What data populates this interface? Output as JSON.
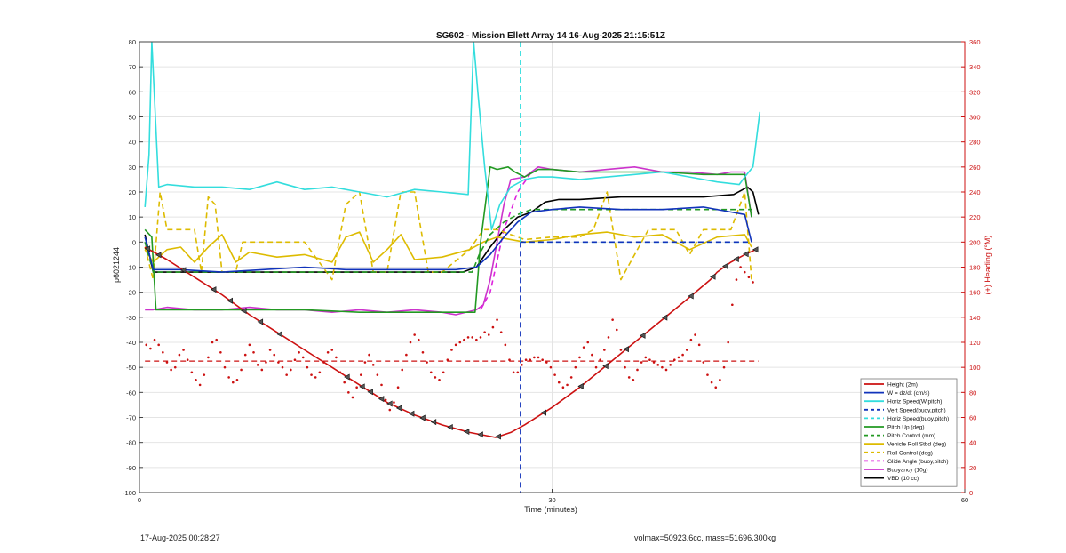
{
  "chart_data": {
    "type": "line",
    "title": "SG602 - Mission Ellett Array 14 16-Aug-2025 21:15:51Z",
    "xlabel": "Time (minutes)",
    "ylabel": "p6021244",
    "y2label": "(+) Heading (°M)",
    "xlim": [
      0,
      60
    ],
    "ylim": [
      -100,
      80
    ],
    "y2lim": [
      0,
      360
    ],
    "xticks": [
      0,
      30,
      60
    ],
    "yticks": [
      -100,
      -90,
      -80,
      -70,
      -60,
      -50,
      -40,
      -30,
      -20,
      -10,
      0,
      10,
      20,
      30,
      40,
      50,
      60,
      70,
      80
    ],
    "y2ticks": [
      0,
      20,
      40,
      60,
      80,
      100,
      120,
      140,
      160,
      180,
      200,
      220,
      240,
      260,
      280,
      300,
      320,
      340,
      360
    ],
    "grid": true,
    "legend_position": "bottom-right",
    "vertical_line_x": 27.7,
    "series": [
      {
        "name": "Height (2m)",
        "color": "#cc1111",
        "style": "solid",
        "x": [
          0.4,
          2,
          4,
          6,
          8,
          10,
          12,
          14,
          16,
          18,
          20,
          22,
          24,
          25.9,
          27,
          28,
          30,
          32,
          34,
          36,
          38,
          40,
          41.5,
          42,
          43,
          44,
          44.8
        ],
        "y": [
          -2,
          -7,
          -14,
          -21,
          -29,
          -36,
          -43,
          -50,
          -57,
          -64,
          -69,
          -73,
          -76,
          -78,
          -76,
          -73,
          -66,
          -58,
          -49,
          -40,
          -31,
          -22,
          -15,
          -12,
          -8,
          -5,
          -3
        ]
      },
      {
        "name": "W = dz/dt (cm/s)",
        "color": "#1133bb",
        "style": "solid",
        "x": [
          0.4,
          1,
          3,
          6,
          9,
          12,
          15,
          18,
          21,
          23,
          24.5,
          25.5,
          26.5,
          27.5,
          28.5,
          30,
          32,
          35,
          38,
          41,
          43,
          44,
          44.5
        ],
        "y": [
          2,
          -11,
          -11,
          -12,
          -11,
          -10,
          -11,
          -11,
          -11,
          -11,
          -10,
          -5,
          2,
          8,
          12,
          13,
          14,
          13,
          13,
          14,
          12,
          11,
          0
        ]
      },
      {
        "name": "Horiz Speed(W,pitch)",
        "color": "#33dddd",
        "style": "solid",
        "x": [
          0.4,
          0.7,
          0.9,
          1.4,
          2,
          4,
          6,
          8,
          10,
          12,
          14,
          16,
          18,
          20,
          22,
          23.9,
          24.1,
          24.3,
          24.6,
          25.1,
          25.6,
          26.2,
          27,
          28,
          29,
          30,
          32,
          34,
          36,
          38,
          40,
          42,
          43.6,
          44,
          44.6,
          45.1
        ],
        "y": [
          14,
          35,
          80,
          22,
          23,
          22,
          22,
          21,
          24,
          21,
          22,
          20,
          18,
          21,
          20,
          19,
          50,
          80,
          60,
          30,
          5,
          15,
          22,
          25,
          26,
          26,
          25,
          26,
          27,
          28,
          26,
          24,
          23,
          26,
          30,
          52
        ]
      },
      {
        "name": "Vert Speed(buoy,pitch)",
        "color": "#1133bb",
        "style": "dashed",
        "x": [
          27.7,
          44.5
        ],
        "y": [
          0,
          0
        ]
      },
      {
        "name": "Horiz Speed(buoy,pitch)",
        "color": "#33dddd",
        "style": "dashed",
        "x": [
          27.7,
          44.5
        ],
        "y": [
          0,
          0
        ]
      },
      {
        "name": "Pitch Up (deg)",
        "color": "#229922",
        "style": "solid",
        "x": [
          0.4,
          0.9,
          1.2,
          1.8,
          4,
          8,
          12,
          16,
          20,
          23,
          24.4,
          24.8,
          25.5,
          26,
          26.8,
          27.3,
          28,
          29,
          30,
          32,
          35,
          38,
          41,
          43,
          44,
          44.5
        ],
        "y": [
          5,
          2,
          -27,
          -27,
          -27,
          -27,
          -27,
          -28,
          -28,
          -28,
          -28,
          0,
          30,
          29,
          30,
          28,
          26,
          29,
          29,
          28,
          28,
          28,
          27,
          27,
          27,
          10
        ]
      },
      {
        "name": "Pitch Control (mm)",
        "color": "#229922",
        "style": "dashed",
        "x": [
          0.4,
          1,
          4,
          8,
          12,
          16,
          20,
          24.2,
          24.7,
          25.5,
          26.5,
          27.5,
          28.5,
          30,
          35,
          40,
          44.5
        ],
        "y": [
          0,
          -12,
          -12,
          -12,
          -12,
          -12,
          -12,
          -12,
          -5,
          3,
          8,
          11,
          13,
          13,
          13,
          13,
          13
        ]
      },
      {
        "name": "Vehicle Roll Stbd (deg)",
        "color": "#ddbb00",
        "style": "solid",
        "x": [
          0.4,
          1,
          2,
          3,
          4,
          5,
          6,
          7,
          8,
          10,
          12,
          14,
          15,
          16,
          17,
          18,
          19,
          20,
          22,
          24,
          25,
          26,
          28,
          30,
          32,
          34,
          36,
          38,
          40,
          42,
          44,
          44.5
        ],
        "y": [
          -3,
          -8,
          -3,
          -2,
          -8,
          -2,
          3,
          -8,
          -4,
          -6,
          -5,
          -8,
          2,
          4,
          -8,
          -3,
          3,
          -7,
          -6,
          -3,
          0,
          2,
          0,
          1,
          3,
          4,
          2,
          3,
          -3,
          2,
          3,
          -2
        ]
      },
      {
        "name": "Roll Control (deg)",
        "color": "#ddbb00",
        "style": "dashed",
        "x": [
          0.4,
          1,
          1.5,
          2,
          2.5,
          4,
          4.5,
          5,
          5.5,
          6,
          7,
          7.5,
          8,
          10,
          12,
          14,
          15,
          16,
          17,
          18,
          19,
          20,
          21,
          22,
          24,
          25,
          26,
          28,
          30,
          32,
          33,
          34,
          35,
          37,
          39,
          40,
          41,
          43,
          44,
          44.5
        ],
        "y": [
          -2,
          -15,
          20,
          5,
          5,
          5,
          -12,
          18,
          15,
          -12,
          -12,
          0,
          0,
          0,
          0,
          -15,
          15,
          20,
          -12,
          -12,
          20,
          20,
          -12,
          -12,
          -3,
          5,
          5,
          1,
          2,
          2,
          5,
          20,
          -15,
          5,
          5,
          -5,
          5,
          5,
          20,
          -15
        ]
      },
      {
        "name": "Glide Angle (buoy,pitch)",
        "color": "#dd22dd",
        "style": "dashed",
        "x": [
          24.8,
          25.5,
          26.5,
          27.5,
          28.5
        ],
        "y": [
          -27,
          -20,
          5,
          20,
          28
        ]
      },
      {
        "name": "Buoyancy (10g)",
        "color": "#cc33cc",
        "style": "solid",
        "x": [
          0.4,
          1,
          2,
          4,
          6,
          8,
          10,
          12,
          14,
          16,
          18,
          20,
          22,
          23,
          24.5,
          25,
          25.5,
          26,
          26.5,
          27,
          28,
          29,
          30,
          32,
          34,
          36,
          38,
          40,
          42,
          43,
          44,
          44.5
        ],
        "y": [
          -27,
          -27,
          -26,
          -27,
          -27,
          -26,
          -27,
          -27,
          -28,
          -27,
          -28,
          -27,
          -28,
          -29,
          -27,
          -25,
          -15,
          0,
          15,
          25,
          26,
          30,
          29,
          28,
          29,
          30,
          28,
          28,
          27,
          28,
          28,
          10
        ]
      },
      {
        "name": "VBD (10 cc)",
        "color": "#000000",
        "style": "solid",
        "x": [
          0.4,
          1,
          4,
          8,
          12,
          16,
          20,
          23.5,
          24.5,
          25.5,
          26.5,
          27.5,
          28.5,
          29.5,
          30.5,
          32,
          35,
          38,
          41,
          43.2,
          44.2,
          44.6,
          45
        ],
        "y": [
          3,
          -12,
          -12,
          -12,
          -12,
          -12,
          -12,
          -12,
          -10,
          -2,
          5,
          10,
          12,
          16,
          17,
          17,
          18,
          18,
          18,
          19,
          22,
          20,
          11
        ]
      }
    ],
    "heading_points": {
      "name": "Heading",
      "color": "#cc1111",
      "axis": "right",
      "x": [
        0.5,
        0.8,
        1.1,
        1.4,
        1.7,
        2.0,
        2.3,
        2.6,
        2.9,
        3.2,
        3.5,
        3.8,
        4.1,
        4.4,
        4.7,
        5.0,
        5.3,
        5.6,
        5.9,
        6.2,
        6.5,
        6.8,
        7.1,
        7.4,
        7.7,
        8.0,
        8.3,
        8.6,
        8.9,
        9.2,
        9.5,
        9.8,
        10.1,
        10.4,
        10.7,
        11.0,
        11.3,
        11.6,
        11.9,
        12.2,
        12.5,
        12.8,
        13.1,
        13.4,
        13.7,
        14.0,
        14.3,
        14.6,
        14.9,
        15.2,
        15.5,
        15.8,
        16.1,
        16.4,
        16.7,
        17.0,
        17.3,
        17.6,
        17.9,
        18.2,
        18.5,
        18.8,
        19.1,
        19.4,
        19.7,
        20.0,
        20.3,
        20.6,
        20.9,
        21.2,
        21.5,
        21.8,
        22.1,
        22.4,
        22.7,
        23.0,
        23.3,
        23.6,
        23.9,
        24.2,
        24.5,
        24.8,
        25.1,
        25.4,
        25.7,
        26.0,
        26.3,
        26.6,
        26.9,
        27.2,
        27.5,
        27.8,
        28.1,
        28.4,
        28.7,
        29.0,
        29.3,
        29.6,
        29.9,
        30.2,
        30.5,
        30.8,
        31.1,
        31.4,
        31.7,
        32.0,
        32.3,
        32.6,
        32.9,
        33.2,
        33.5,
        33.8,
        34.1,
        34.4,
        34.7,
        35.0,
        35.3,
        35.6,
        35.9,
        36.2,
        36.5,
        36.8,
        37.1,
        37.4,
        37.7,
        38.0,
        38.3,
        38.6,
        38.9,
        39.2,
        39.5,
        39.8,
        40.1,
        40.4,
        40.7,
        41.0,
        41.3,
        41.6,
        41.9,
        42.2,
        42.5,
        42.8,
        43.1,
        43.4,
        43.7,
        44.0,
        44.3,
        44.6
      ],
      "y": [
        118,
        115,
        122,
        118,
        112,
        104,
        98,
        100,
        110,
        114,
        106,
        96,
        90,
        86,
        94,
        108,
        120,
        122,
        112,
        100,
        92,
        88,
        90,
        98,
        110,
        118,
        112,
        102,
        98,
        104,
        114,
        110,
        104,
        100,
        94,
        98,
        106,
        112,
        108,
        100,
        94,
        92,
        96,
        104,
        112,
        114,
        108,
        96,
        88,
        80,
        76,
        84,
        94,
        104,
        110,
        102,
        94,
        86,
        74,
        66,
        72,
        84,
        98,
        110,
        120,
        126,
        122,
        112,
        104,
        96,
        92,
        90,
        96,
        106,
        114,
        118,
        120,
        122,
        124,
        124,
        122,
        124,
        128,
        126,
        132,
        138,
        128,
        118,
        106,
        96,
        96,
        102,
        106,
        106,
        108,
        108,
        106,
        104,
        100,
        94,
        88,
        84,
        86,
        92,
        100,
        108,
        116,
        120,
        110,
        100,
        106,
        114,
        124,
        138,
        130,
        114,
        100,
        92,
        90,
        98,
        104,
        108,
        106,
        104,
        102,
        100,
        98,
        102,
        106,
        108,
        110,
        114,
        122,
        126,
        118,
        104,
        94,
        88,
        84,
        90,
        100,
        120,
        150,
        170,
        180,
        176,
        172,
        168
      ]
    },
    "heading_mean": 105,
    "height_markers_x": [
      0.6,
      1.4,
      3.2,
      5.4,
      6.6,
      7.6,
      8.8,
      10.2,
      15.1,
      16.2,
      16.8,
      17.6,
      18.2,
      18.9,
      19.8,
      20.6,
      21.4,
      22.6,
      23.8,
      24.8,
      26.1,
      29.4,
      32.1,
      33.9,
      35.4,
      36.6,
      38.2,
      40.1,
      41.7,
      42.6,
      43.4,
      44.1,
      44.8
    ]
  },
  "footer": {
    "timestamp": "17-Aug-2025 00:28:27",
    "summary": "volmax=50923.6cc, mass=51696.300kg"
  }
}
